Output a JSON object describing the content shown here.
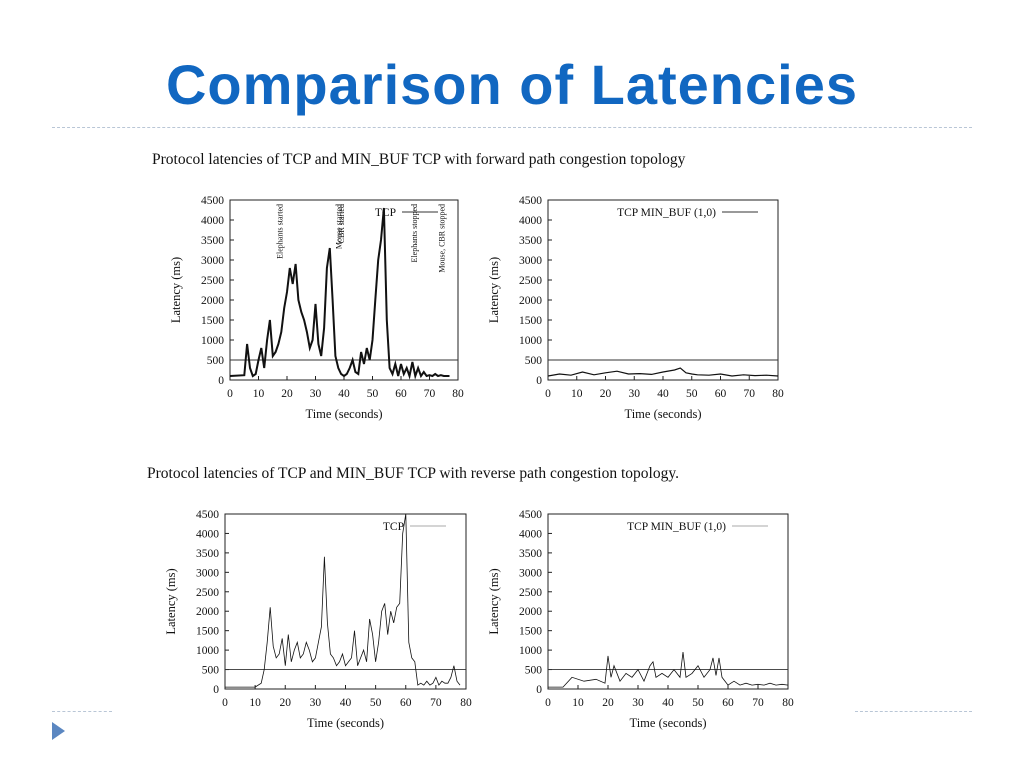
{
  "slide": {
    "title": "Comparison of Latencies",
    "accent_color": "#1167c1",
    "bullet_icon": "triangle-bullet-icon"
  },
  "sections": [
    {
      "caption": "Protocol latencies of TCP and MIN_BUF TCP with forward path congestion topology"
    },
    {
      "caption": "Protocol latencies of TCP and MIN_BUF TCP with reverse path congestion topology."
    }
  ],
  "chart_data": [
    {
      "type": "line",
      "xlabel": "Time (seconds)",
      "ylabel": "Latency (ms)",
      "xlim": [
        0,
        80
      ],
      "ylim": [
        0,
        4500
      ],
      "xticks": [
        0,
        10,
        20,
        30,
        40,
        50,
        60,
        70,
        80
      ],
      "yticks": [
        0,
        500,
        1000,
        1500,
        2000,
        2500,
        3000,
        3500,
        4000,
        4500
      ],
      "reference_line_y": 500,
      "legend": "top-right",
      "series": [
        {
          "name": "TCP",
          "x": [
            0,
            5,
            6,
            7,
            8,
            9,
            10,
            11,
            12,
            13,
            14,
            15,
            16,
            17,
            18,
            19,
            20,
            21,
            22,
            23,
            24,
            25,
            26,
            27,
            28,
            29,
            30,
            31,
            32,
            33,
            34,
            35,
            36,
            37,
            38,
            39,
            40,
            41,
            42,
            43,
            44,
            45,
            46,
            47,
            48,
            49,
            50,
            51,
            52,
            53,
            54,
            55,
            56,
            57,
            58,
            59,
            60,
            61,
            62,
            63,
            64,
            65,
            66,
            67,
            68,
            69,
            70,
            71,
            72,
            73,
            74,
            75,
            76,
            77
          ],
          "y": [
            100,
            120,
            900,
            300,
            100,
            150,
            500,
            800,
            300,
            1000,
            1500,
            600,
            700,
            900,
            1200,
            1800,
            2200,
            2800,
            2400,
            2900,
            2000,
            1700,
            1500,
            1200,
            800,
            1000,
            1900,
            900,
            600,
            1300,
            2800,
            3300,
            2000,
            600,
            300,
            150,
            100,
            150,
            300,
            500,
            200,
            150,
            700,
            400,
            800,
            500,
            1000,
            2000,
            3000,
            3500,
            4300,
            1500,
            300,
            150,
            400,
            100,
            400,
            150,
            300,
            100,
            450,
            100,
            300,
            100,
            200,
            100,
            120,
            100,
            150,
            100,
            120,
            100,
            100,
            100
          ]
        }
      ],
      "annotations": [
        "Elephants started",
        "Mouse started",
        "CBR started",
        "Elephants stopped",
        "Mouse, CBR stopped"
      ]
    },
    {
      "type": "line",
      "xlabel": "Time (seconds)",
      "ylabel": "Latency (ms)",
      "xlim": [
        0,
        80
      ],
      "ylim": [
        0,
        4500
      ],
      "xticks": [
        0,
        10,
        20,
        30,
        40,
        50,
        60,
        70,
        80
      ],
      "yticks": [
        0,
        500,
        1000,
        1500,
        2000,
        2500,
        3000,
        3500,
        4000,
        4500
      ],
      "reference_line_y": 500,
      "legend": "top-right",
      "series": [
        {
          "name": "TCP  MIN_BUF (1,0)",
          "x": [
            0,
            4,
            8,
            12,
            16,
            20,
            24,
            28,
            32,
            36,
            40,
            44,
            46,
            48,
            50,
            52,
            56,
            60,
            64,
            68,
            72,
            76,
            80
          ],
          "y": [
            100,
            150,
            120,
            200,
            130,
            180,
            220,
            150,
            160,
            140,
            200,
            250,
            300,
            180,
            150,
            130,
            120,
            150,
            100,
            130,
            110,
            120,
            100
          ]
        }
      ]
    },
    {
      "type": "line",
      "xlabel": "Time (seconds)",
      "ylabel": "Latency (ms)",
      "xlim": [
        0,
        80
      ],
      "ylim": [
        0,
        4500
      ],
      "xticks": [
        0,
        10,
        20,
        30,
        40,
        50,
        60,
        70,
        80
      ],
      "yticks": [
        0,
        500,
        1000,
        1500,
        2000,
        2500,
        3000,
        3500,
        4000,
        4500
      ],
      "reference_line_y": 500,
      "legend": "top-right",
      "series": [
        {
          "name": "TCP",
          "x": [
            0,
            5,
            10,
            12,
            13,
            14,
            15,
            16,
            17,
            18,
            19,
            20,
            21,
            22,
            23,
            24,
            25,
            26,
            27,
            28,
            29,
            30,
            31,
            32,
            33,
            34,
            35,
            36,
            37,
            38,
            39,
            40,
            41,
            42,
            43,
            44,
            45,
            46,
            47,
            48,
            49,
            50,
            51,
            52,
            53,
            54,
            55,
            56,
            57,
            58,
            59,
            60,
            61,
            62,
            63,
            64,
            65,
            66,
            67,
            68,
            69,
            70,
            71,
            72,
            73,
            74,
            75,
            76,
            77,
            78
          ],
          "y": [
            50,
            50,
            50,
            150,
            500,
            1200,
            2100,
            1100,
            800,
            900,
            1300,
            600,
            1400,
            700,
            1000,
            1200,
            800,
            900,
            1200,
            1000,
            700,
            800,
            1200,
            1600,
            3400,
            1700,
            900,
            800,
            600,
            700,
            900,
            600,
            700,
            800,
            1500,
            600,
            800,
            1000,
            700,
            1800,
            1400,
            700,
            1200,
            2000,
            2200,
            1400,
            2000,
            1700,
            2100,
            2200,
            4000,
            4500,
            1200,
            800,
            700,
            100,
            150,
            100,
            200,
            100,
            150,
            300,
            100,
            200,
            150,
            150,
            300,
            600,
            200,
            100
          ]
        }
      ]
    },
    {
      "type": "line",
      "xlabel": "Time (seconds)",
      "ylabel": "Latency (ms)",
      "xlim": [
        0,
        80
      ],
      "ylim": [
        0,
        4500
      ],
      "xticks": [
        0,
        10,
        20,
        30,
        40,
        50,
        60,
        70,
        80
      ],
      "yticks": [
        0,
        500,
        1000,
        1500,
        2000,
        2500,
        3000,
        3500,
        4000,
        4500
      ],
      "reference_line_y": 500,
      "legend": "top-right",
      "series": [
        {
          "name": "TCP  MIN_BUF (1,0)",
          "x": [
            0,
            5,
            8,
            12,
            16,
            19,
            20,
            21,
            22,
            24,
            26,
            28,
            30,
            32,
            34,
            35,
            36,
            38,
            40,
            42,
            44,
            45,
            46,
            48,
            50,
            52,
            54,
            55,
            56,
            57,
            58,
            60,
            62,
            64,
            66,
            68,
            70,
            72,
            74,
            76,
            78,
            80
          ],
          "y": [
            50,
            50,
            300,
            200,
            250,
            150,
            850,
            300,
            600,
            200,
            400,
            300,
            500,
            200,
            600,
            700,
            300,
            400,
            300,
            500,
            300,
            950,
            300,
            400,
            600,
            300,
            500,
            800,
            350,
            800,
            300,
            100,
            200,
            100,
            150,
            100,
            120,
            100,
            150,
            100,
            120,
            100
          ]
        }
      ]
    }
  ]
}
